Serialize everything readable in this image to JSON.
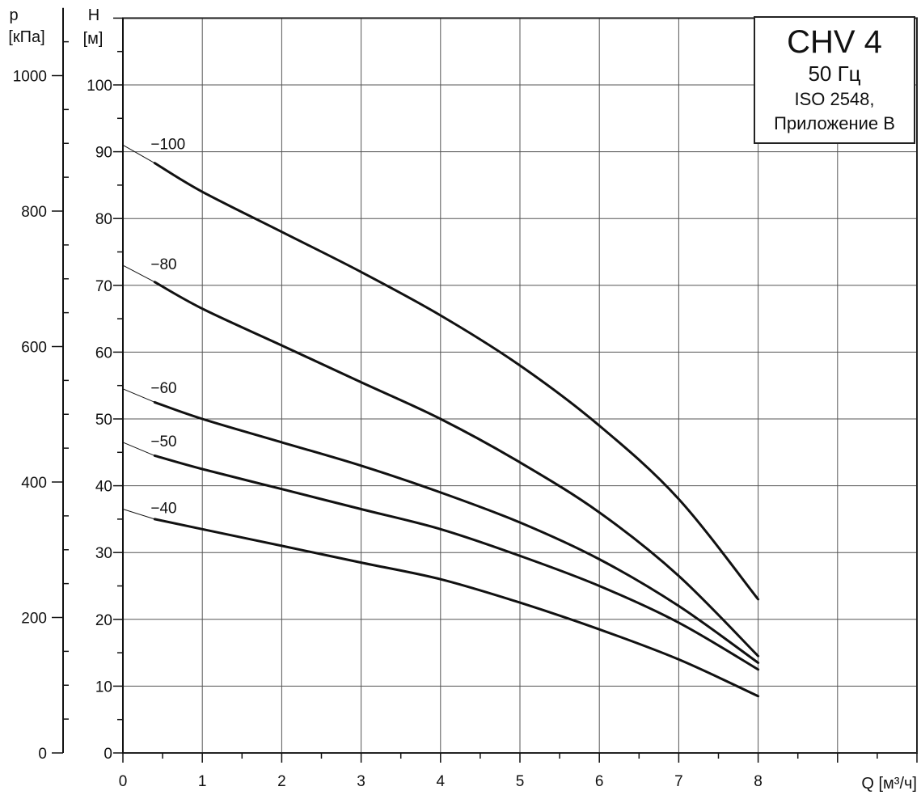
{
  "chart_data": {
    "type": "line",
    "title": "CHV 4",
    "subtitle_lines": [
      "50 Гц",
      "ISO 2548,",
      "Приложение B"
    ],
    "xlabel": "Q [м³/ч]",
    "ylabel_left_symbol": "p",
    "ylabel_left_unit": "[кПа]",
    "ylabel_right_symbol": "H",
    "ylabel_right_unit": "[м]",
    "xlim": [
      0,
      10
    ],
    "ylim": [
      0,
      100
    ],
    "pressure_lim": [
      0,
      1000
    ],
    "grid": true,
    "x_ticks": [
      "0",
      "1",
      "2",
      "3",
      "4",
      "5",
      "6",
      "7",
      "8"
    ],
    "h_ticks": [
      "0",
      "10",
      "20",
      "30",
      "40",
      "50",
      "60",
      "70",
      "80",
      "90",
      "100"
    ],
    "p_ticks": [
      "0",
      "200",
      "400",
      "600",
      "800",
      "1000"
    ],
    "series": [
      {
        "name": "−100",
        "x": [
          0,
          0.4,
          1,
          2,
          3,
          4,
          5,
          6,
          7,
          8
        ],
        "y": [
          91,
          88.3,
          84,
          78,
          72,
          65.5,
          58,
          49,
          38,
          23
        ]
      },
      {
        "name": "−80",
        "x": [
          0,
          0.4,
          1,
          2,
          3,
          4,
          5,
          6,
          7,
          8
        ],
        "y": [
          73,
          70.5,
          66.5,
          61,
          55.5,
          50,
          43.5,
          36,
          26.5,
          14.5
        ]
      },
      {
        "name": "−60",
        "x": [
          0,
          0.4,
          1,
          2,
          3,
          4,
          5,
          6,
          7,
          8
        ],
        "y": [
          54.5,
          52.5,
          50,
          46.5,
          43,
          39,
          34.5,
          29,
          22,
          13.5
        ]
      },
      {
        "name": "−50",
        "x": [
          0,
          0.4,
          1,
          2,
          3,
          4,
          5,
          6,
          7,
          8
        ],
        "y": [
          46.5,
          44.5,
          42.5,
          39.5,
          36.5,
          33.5,
          29.5,
          25,
          19.5,
          12.5
        ]
      },
      {
        "name": "−40",
        "x": [
          0,
          0.4,
          1,
          2,
          3,
          4,
          5,
          6,
          7,
          8
        ],
        "y": [
          36.5,
          35,
          33.5,
          31,
          28.5,
          26,
          22.5,
          18.5,
          14,
          8.5
        ]
      }
    ]
  }
}
